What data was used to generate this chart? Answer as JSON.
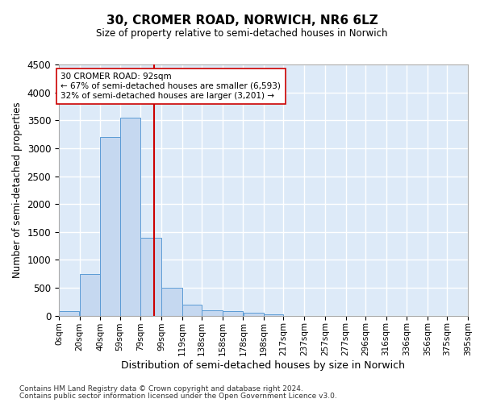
{
  "title": "30, CROMER ROAD, NORWICH, NR6 6LZ",
  "subtitle": "Size of property relative to semi-detached houses in Norwich",
  "xlabel": "Distribution of semi-detached houses by size in Norwich",
  "ylabel": "Number of semi-detached properties",
  "bar_color": "#c5d8f0",
  "bar_edge_color": "#5b9bd5",
  "background_color": "#ddeaf8",
  "grid_color": "#ffffff",
  "ylim": [
    0,
    4500
  ],
  "yticks": [
    0,
    500,
    1000,
    1500,
    2000,
    2500,
    3000,
    3500,
    4000,
    4500
  ],
  "bin_labels": [
    "0sqm",
    "20sqm",
    "40sqm",
    "59sqm",
    "79sqm",
    "99sqm",
    "119sqm",
    "138sqm",
    "158sqm",
    "178sqm",
    "198sqm",
    "217sqm",
    "237sqm",
    "257sqm",
    "277sqm",
    "296sqm",
    "316sqm",
    "336sqm",
    "356sqm",
    "375sqm",
    "395sqm"
  ],
  "bar_values": [
    75,
    750,
    3200,
    3550,
    1400,
    500,
    200,
    100,
    75,
    50,
    30,
    0,
    0,
    0,
    0,
    0,
    0,
    0,
    0,
    0
  ],
  "property_sqm": 92,
  "annotation_text": "30 CROMER ROAD: 92sqm\n← 67% of semi-detached houses are smaller (6,593)\n32% of semi-detached houses are larger (3,201) →",
  "vline_color": "#cc0000",
  "annotation_box_color": "#ffffff",
  "annotation_box_edge": "#cc0000",
  "footnote1": "Contains HM Land Registry data © Crown copyright and database right 2024.",
  "footnote2": "Contains public sector information licensed under the Open Government Licence v3.0.",
  "bin_edges": [
    0,
    20,
    40,
    59,
    79,
    99,
    119,
    138,
    158,
    178,
    198,
    217,
    237,
    257,
    277,
    296,
    316,
    336,
    356,
    375,
    395
  ]
}
